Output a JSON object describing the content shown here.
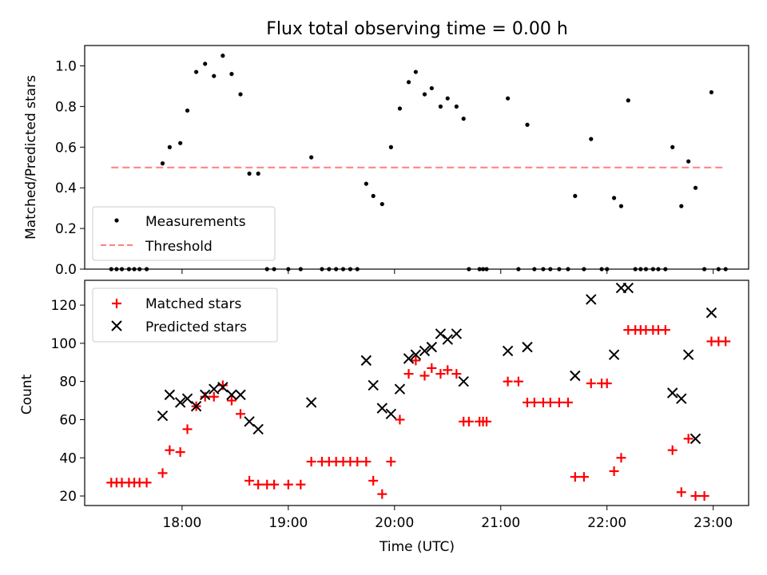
{
  "title": "Flux total observing time = 0.00 h",
  "chart_data": [
    {
      "type": "scatter",
      "panel": "top",
      "title": "Flux total observing time = 0.00 h",
      "xlabel": "",
      "ylabel": "Matched/Predicted stars",
      "ylim": [
        0,
        1.1
      ],
      "yticks": [
        0.0,
        0.2,
        0.4,
        0.6,
        0.8,
        1.0
      ],
      "ytick_labels": [
        "0.0",
        "0.2",
        "0.4",
        "0.6",
        "0.8",
        "1.0"
      ],
      "legend_position": "lower-left",
      "colors": {
        "measurements": "#000000",
        "threshold": "#ff7f7f"
      },
      "series": [
        {
          "name": "Measurements",
          "marker": "dot",
          "points": [
            [
              "17:20",
              0
            ],
            [
              "17:23",
              0
            ],
            [
              "17:26",
              0
            ],
            [
              "17:30",
              0
            ],
            [
              "17:33",
              0
            ],
            [
              "17:36",
              0
            ],
            [
              "17:40",
              0
            ],
            [
              "17:49",
              0.52
            ],
            [
              "17:53",
              0.6
            ],
            [
              "17:59",
              0.62
            ],
            [
              "18:03",
              0.78
            ],
            [
              "18:08",
              0.97
            ],
            [
              "18:13",
              1.01
            ],
            [
              "18:18",
              0.95
            ],
            [
              "18:23",
              1.05
            ],
            [
              "18:28",
              0.96
            ],
            [
              "18:33",
              0.86
            ],
            [
              "18:38",
              0.47
            ],
            [
              "18:43",
              0.47
            ],
            [
              "18:48",
              0
            ],
            [
              "18:52",
              0
            ],
            [
              "19:00",
              0
            ],
            [
              "19:07",
              0
            ],
            [
              "19:13",
              0.55
            ],
            [
              "19:19",
              0
            ],
            [
              "19:23",
              0
            ],
            [
              "19:27",
              0
            ],
            [
              "19:31",
              0
            ],
            [
              "19:35",
              0
            ],
            [
              "19:39",
              0
            ],
            [
              "19:44",
              0.42
            ],
            [
              "19:48",
              0.36
            ],
            [
              "19:53",
              0.32
            ],
            [
              "19:58",
              0.6
            ],
            [
              "20:03",
              0.79
            ],
            [
              "20:08",
              0.92
            ],
            [
              "20:12",
              0.97
            ],
            [
              "20:17",
              0.86
            ],
            [
              "20:21",
              0.89
            ],
            [
              "20:26",
              0.8
            ],
            [
              "20:30",
              0.84
            ],
            [
              "20:35",
              0.8
            ],
            [
              "20:39",
              0.74
            ],
            [
              "20:42",
              0
            ],
            [
              "20:48",
              0
            ],
            [
              "20:50",
              0
            ],
            [
              "20:52",
              0
            ],
            [
              "21:04",
              0.84
            ],
            [
              "21:10",
              0
            ],
            [
              "21:15",
              0.71
            ],
            [
              "21:19",
              0
            ],
            [
              "21:24",
              0
            ],
            [
              "21:28",
              0
            ],
            [
              "21:33",
              0
            ],
            [
              "21:38",
              0
            ],
            [
              "21:42",
              0.36
            ],
            [
              "21:47",
              0
            ],
            [
              "21:51",
              0.64
            ],
            [
              "21:57",
              0
            ],
            [
              "22:00",
              0
            ],
            [
              "22:04",
              0.35
            ],
            [
              "22:08",
              0.31
            ],
            [
              "22:12",
              0.83
            ],
            [
              "22:16",
              0
            ],
            [
              "22:19",
              0
            ],
            [
              "22:22",
              0
            ],
            [
              "22:26",
              0
            ],
            [
              "22:29",
              0
            ],
            [
              "22:33",
              0
            ],
            [
              "22:37",
              0.6
            ],
            [
              "22:42",
              0.31
            ],
            [
              "22:46",
              0.53
            ],
            [
              "22:50",
              0.4
            ],
            [
              "22:55",
              0
            ],
            [
              "22:59",
              0.87
            ],
            [
              "23:03",
              0
            ],
            [
              "23:07",
              0
            ]
          ]
        },
        {
          "name": "Threshold",
          "line": "dashed",
          "points": [
            [
              "17:20",
              0.5
            ],
            [
              "23:07",
              0.5
            ]
          ]
        }
      ]
    },
    {
      "type": "scatter",
      "panel": "bottom",
      "xlabel": "Time (UTC)",
      "ylabel": "Count",
      "ylim": [
        15,
        133
      ],
      "yticks": [
        20,
        40,
        60,
        80,
        100,
        120
      ],
      "xlim": [
        "17:05",
        "23:20"
      ],
      "xticks": [
        "18:00",
        "19:00",
        "20:00",
        "21:00",
        "22:00",
        "23:00"
      ],
      "legend_position": "upper-left",
      "colors": {
        "matched": "#ff0000",
        "predicted": "#000000"
      },
      "series": [
        {
          "name": "Matched stars",
          "marker": "plus",
          "points": [
            [
              "17:20",
              27
            ],
            [
              "17:23",
              27
            ],
            [
              "17:26",
              27
            ],
            [
              "17:30",
              27
            ],
            [
              "17:33",
              27
            ],
            [
              "17:36",
              27
            ],
            [
              "17:40",
              27
            ],
            [
              "17:49",
              32
            ],
            [
              "17:53",
              44
            ],
            [
              "17:59",
              43
            ],
            [
              "18:03",
              55
            ],
            [
              "18:08",
              67
            ],
            [
              "18:13",
              72
            ],
            [
              "18:18",
              72
            ],
            [
              "18:23",
              78
            ],
            [
              "18:28",
              70
            ],
            [
              "18:33",
              63
            ],
            [
              "18:38",
              28
            ],
            [
              "18:43",
              26
            ],
            [
              "18:48",
              26
            ],
            [
              "18:52",
              26
            ],
            [
              "19:00",
              26
            ],
            [
              "19:07",
              26
            ],
            [
              "19:13",
              38
            ],
            [
              "19:19",
              38
            ],
            [
              "19:23",
              38
            ],
            [
              "19:27",
              38
            ],
            [
              "19:31",
              38
            ],
            [
              "19:35",
              38
            ],
            [
              "19:39",
              38
            ],
            [
              "19:44",
              38
            ],
            [
              "19:48",
              28
            ],
            [
              "19:53",
              21
            ],
            [
              "19:58",
              38
            ],
            [
              "20:03",
              60
            ],
            [
              "20:08",
              84
            ],
            [
              "20:12",
              91
            ],
            [
              "20:17",
              83
            ],
            [
              "20:21",
              87
            ],
            [
              "20:26",
              84
            ],
            [
              "20:30",
              86
            ],
            [
              "20:35",
              84
            ],
            [
              "20:39",
              59
            ],
            [
              "20:42",
              59
            ],
            [
              "20:48",
              59
            ],
            [
              "20:50",
              59
            ],
            [
              "20:52",
              59
            ],
            [
              "21:04",
              80
            ],
            [
              "21:10",
              80
            ],
            [
              "21:15",
              69
            ],
            [
              "21:19",
              69
            ],
            [
              "21:24",
              69
            ],
            [
              "21:28",
              69
            ],
            [
              "21:33",
              69
            ],
            [
              "21:38",
              69
            ],
            [
              "21:42",
              30
            ],
            [
              "21:47",
              30
            ],
            [
              "21:51",
              79
            ],
            [
              "21:57",
              79
            ],
            [
              "22:00",
              79
            ],
            [
              "22:04",
              33
            ],
            [
              "22:08",
              40
            ],
            [
              "22:12",
              107
            ],
            [
              "22:16",
              107
            ],
            [
              "22:19",
              107
            ],
            [
              "22:22",
              107
            ],
            [
              "22:26",
              107
            ],
            [
              "22:29",
              107
            ],
            [
              "22:33",
              107
            ],
            [
              "22:37",
              44
            ],
            [
              "22:42",
              22
            ],
            [
              "22:46",
              50
            ],
            [
              "22:50",
              20
            ],
            [
              "22:55",
              20
            ],
            [
              "22:59",
              101
            ],
            [
              "23:03",
              101
            ],
            [
              "23:07",
              101
            ]
          ]
        },
        {
          "name": "Predicted stars",
          "marker": "x",
          "points": [
            [
              "17:49",
              62
            ],
            [
              "17:53",
              73
            ],
            [
              "17:59",
              69
            ],
            [
              "18:03",
              71
            ],
            [
              "18:08",
              67
            ],
            [
              "18:13",
              73
            ],
            [
              "18:18",
              76
            ],
            [
              "18:23",
              77
            ],
            [
              "18:28",
              73
            ],
            [
              "18:33",
              73
            ],
            [
              "18:38",
              59
            ],
            [
              "18:43",
              55
            ],
            [
              "19:13",
              69
            ],
            [
              "19:44",
              91
            ],
            [
              "19:48",
              78
            ],
            [
              "19:53",
              66
            ],
            [
              "19:58",
              63
            ],
            [
              "20:03",
              76
            ],
            [
              "20:08",
              92
            ],
            [
              "20:12",
              94
            ],
            [
              "20:17",
              96
            ],
            [
              "20:21",
              98
            ],
            [
              "20:26",
              105
            ],
            [
              "20:30",
              102
            ],
            [
              "20:35",
              105
            ],
            [
              "20:39",
              80
            ],
            [
              "21:04",
              96
            ],
            [
              "21:15",
              98
            ],
            [
              "21:42",
              83
            ],
            [
              "21:51",
              123
            ],
            [
              "22:04",
              94
            ],
            [
              "22:08",
              129
            ],
            [
              "22:12",
              129
            ],
            [
              "22:37",
              74
            ],
            [
              "22:42",
              71
            ],
            [
              "22:46",
              94
            ],
            [
              "22:50",
              50
            ],
            [
              "22:59",
              116
            ]
          ]
        }
      ]
    }
  ]
}
